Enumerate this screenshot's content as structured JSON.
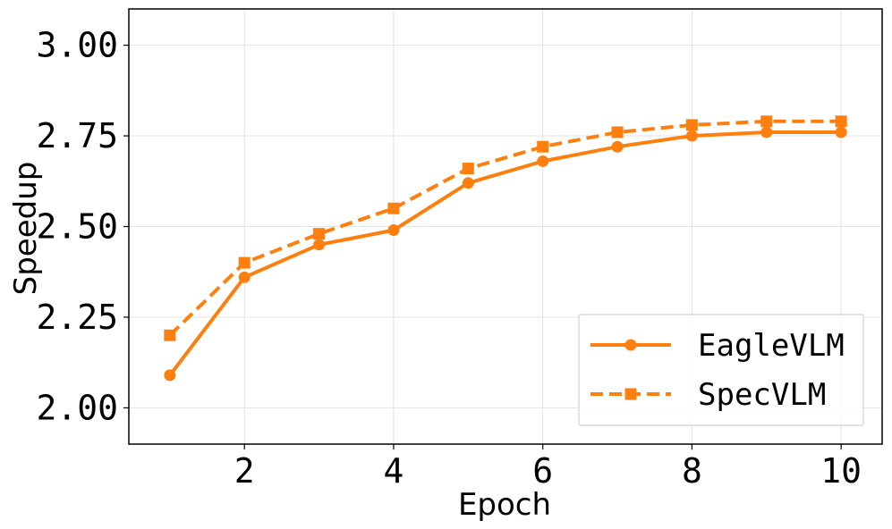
{
  "chart_data": {
    "type": "line",
    "title": "",
    "xlabel": "Epoch",
    "ylabel": "Speedup",
    "xlim": [
      0.45,
      10.55
    ],
    "ylim": [
      1.9,
      3.1
    ],
    "xticks": [
      2,
      4,
      6,
      8,
      10
    ],
    "xtick_labels": [
      "2",
      "4",
      "6",
      "8",
      "10"
    ],
    "yticks": [
      2.0,
      2.25,
      2.5,
      2.75,
      3.0
    ],
    "ytick_labels": [
      "2.00",
      "2.25",
      "2.50",
      "2.75",
      "3.00"
    ],
    "grid": true,
    "legend_position": "bottom-right",
    "x": [
      1,
      2,
      3,
      4,
      5,
      6,
      7,
      8,
      9,
      10
    ],
    "series": [
      {
        "name": "EagleVLM",
        "values": [
          2.09,
          2.36,
          2.45,
          2.49,
          2.62,
          2.68,
          2.72,
          2.75,
          2.76,
          2.76
        ],
        "color": "#ff7f0e",
        "line_style": "solid",
        "marker": "circle"
      },
      {
        "name": "SpecVLM",
        "values": [
          2.2,
          2.4,
          2.48,
          2.55,
          2.66,
          2.72,
          2.76,
          2.78,
          2.79,
          2.79
        ],
        "color": "#ff7f0e",
        "line_style": "dashed",
        "marker": "square"
      }
    ]
  }
}
